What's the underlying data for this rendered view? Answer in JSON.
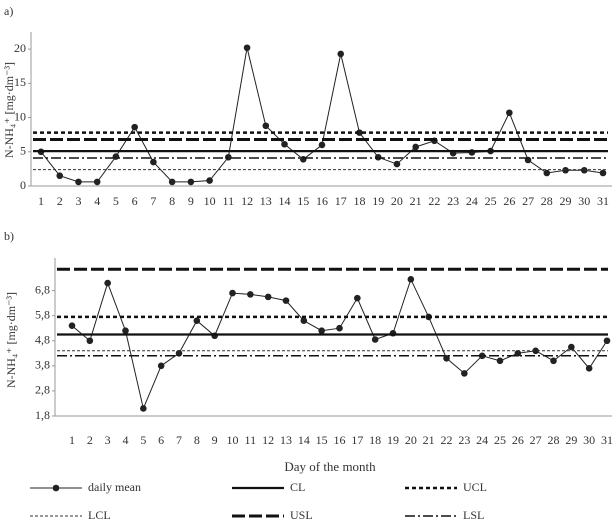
{
  "chart_data": [
    {
      "type": "line",
      "title": "a)",
      "ylabel": "N-NH₄⁺ [mg·dm⁻³]",
      "categories": [
        "1",
        "2",
        "3",
        "4",
        "5",
        "6",
        "7",
        "8",
        "9",
        "10",
        "11",
        "12",
        "13",
        "14",
        "15",
        "16",
        "17",
        "18",
        "19",
        "20",
        "21",
        "22",
        "23",
        "24",
        "25",
        "26",
        "27",
        "28",
        "29",
        "30",
        "31"
      ],
      "ylim": [
        0,
        22.5
      ],
      "yticks": [
        0,
        5,
        10,
        15,
        20
      ],
      "series": [
        {
          "name": "daily mean",
          "color": "#222222",
          "values": [
            5.0,
            1.5,
            0.6,
            0.6,
            4.3,
            8.6,
            3.5,
            0.6,
            0.6,
            0.8,
            4.2,
            20.2,
            8.8,
            6.1,
            3.9,
            6.0,
            19.3,
            7.8,
            4.2,
            3.2,
            5.7,
            6.6,
            4.8,
            4.9,
            5.1,
            10.7,
            3.8,
            1.9,
            2.3,
            2.3,
            1.9
          ]
        },
        {
          "name": "CL",
          "color": "#111111",
          "value": 5.1,
          "dash": "none",
          "width": 2.2
        },
        {
          "name": "UCL",
          "color": "#111111",
          "value": 7.8,
          "dash": "4,3",
          "width": 2.5
        },
        {
          "name": "LCL",
          "color": "#333333",
          "value": 2.4,
          "dash": "3,2",
          "width": 1
        },
        {
          "name": "USL",
          "color": "#111111",
          "value": 6.8,
          "dash": "13,4",
          "width": 3
        },
        {
          "name": "LSL",
          "color": "#111111",
          "value": 4.1,
          "dash": "10,3,2,3",
          "width": 1.5
        }
      ]
    },
    {
      "type": "line",
      "title": "b)",
      "ylabel": "N-NH₄⁺ [mg·dm⁻³]",
      "xlabel": "Day of the month",
      "categories": [
        "1",
        "2",
        "3",
        "4",
        "5",
        "6",
        "7",
        "8",
        "9",
        "10",
        "11",
        "12",
        "13",
        "14",
        "15",
        "16",
        "17",
        "18",
        "19",
        "20",
        "21",
        "22",
        "23",
        "24",
        "25",
        "26",
        "27",
        "28",
        "29",
        "30",
        "31"
      ],
      "ylim": [
        1.8,
        8.1
      ],
      "yticks": [
        {
          "value": 1.8,
          "label": "1,8"
        },
        {
          "value": 2.8,
          "label": "2,8"
        },
        {
          "value": 3.8,
          "label": "3,8"
        },
        {
          "value": 4.8,
          "label": "4,8"
        },
        {
          "value": 5.8,
          "label": "5,8"
        },
        {
          "value": 6.8,
          "label": "6,8"
        }
      ],
      "series": [
        {
          "color": "#222222",
          "values": [
            5.4,
            4.8,
            7.1,
            5.2,
            2.1,
            3.8,
            4.3,
            5.6,
            5.0,
            6.7,
            6.65,
            6.55,
            6.4,
            5.6,
            5.2,
            5.3,
            6.5,
            4.85,
            5.1,
            7.25,
            5.75,
            4.1,
            3.5,
            4.2,
            4.0,
            4.3,
            4.4,
            4.0,
            4.55,
            3.7,
            4.8
          ]
        },
        {
          "color": "#111111",
          "value": 5.05,
          "dash": "none",
          "width": 2.2
        },
        {
          "color": "#111111",
          "value": 5.75,
          "dash": "4,3",
          "width": 2.5
        },
        {
          "color": "#333333",
          "value": 4.4,
          "dash": "3,2",
          "width": 1
        },
        {
          "color": "#111111",
          "value": 7.65,
          "dash": "13,4",
          "width": 3
        },
        {
          "color": "#111111",
          "value": 4.2,
          "dash": "10,3,2,3",
          "width": 1.5
        }
      ]
    }
  ]
}
